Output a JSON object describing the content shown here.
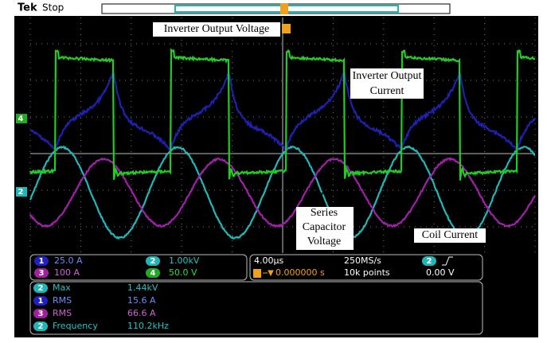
{
  "header": {
    "brand": "Tek",
    "status": "Stop"
  },
  "annotations": [
    [
      "Inverter Output Voltage"
    ],
    [
      "Inverter Output",
      "Current"
    ],
    [
      "Series",
      "Capacitor",
      "Voltage"
    ],
    [
      "Coil Current"
    ]
  ],
  "channels": [
    {
      "id": "1",
      "scale": "25.0 A"
    },
    {
      "id": "2",
      "scale": "1.00kV"
    },
    {
      "id": "3",
      "scale": "100 A"
    },
    {
      "id": "4",
      "scale": "50.0 V"
    }
  ],
  "timebase": {
    "scale": "4.00µs",
    "sample_rate": "250MS/s",
    "trigger_channel": "2",
    "trigger_position": "0.000000 s",
    "record_length": "10k points",
    "trigger_level": "0.00 V"
  },
  "measurements": [
    {
      "channel": "2",
      "name": "Max",
      "value": "1.44kV"
    },
    {
      "channel": "1",
      "name": "RMS",
      "value": "15.6 A"
    },
    {
      "channel": "3",
      "name": "RMS",
      "value": "66.6 A"
    },
    {
      "channel": "2",
      "name": "Frequency",
      "value": "110.2kHz"
    }
  ]
}
